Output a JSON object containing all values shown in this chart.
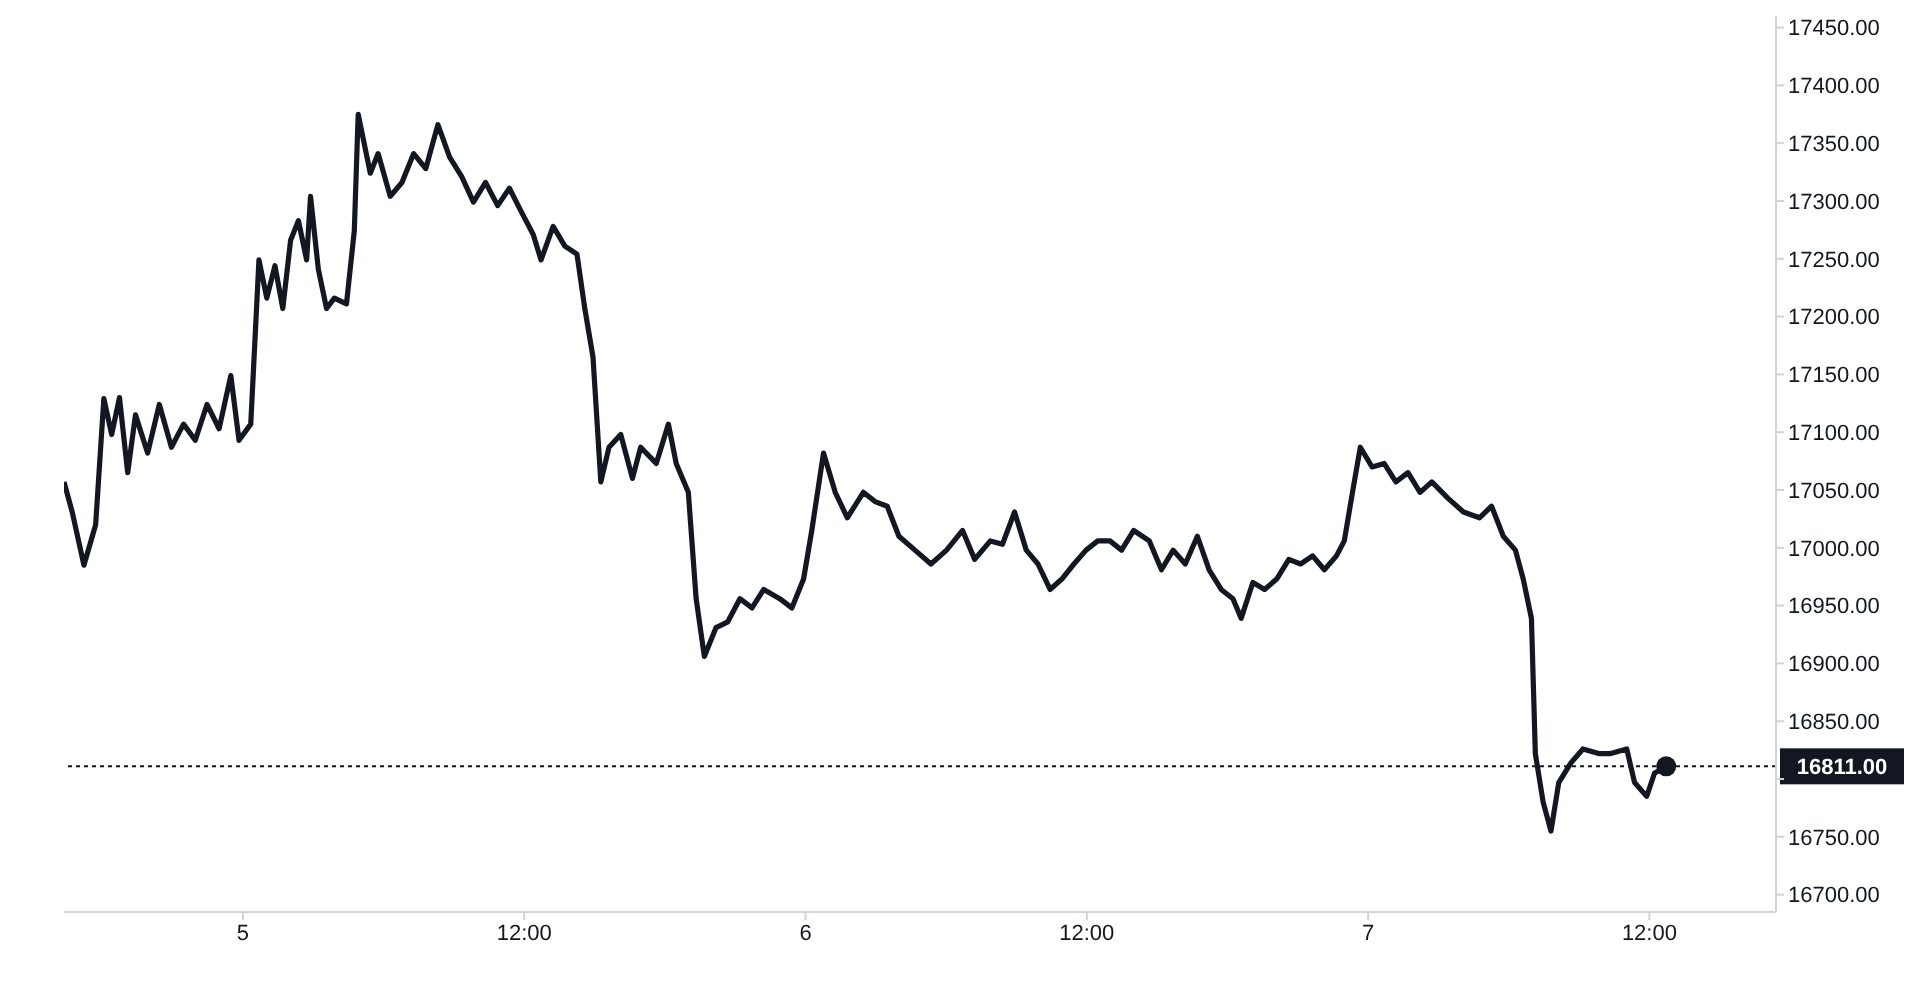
{
  "chart_data": {
    "type": "line",
    "xlim": [
      "--12-04T16:22",
      "--12-07T17:24"
    ],
    "ylim": [
      16685,
      17460
    ],
    "xticks": [
      {
        "value": "--12-05",
        "label": "5"
      },
      {
        "value": "--12-05T12:00",
        "label": "12:00"
      },
      {
        "value": "--12-06",
        "label": "6"
      },
      {
        "value": "--12-06T12:00",
        "label": "12:00"
      },
      {
        "value": "--12-07",
        "label": "7"
      },
      {
        "value": "--12-07T12:00",
        "label": "12:00"
      }
    ],
    "yticks": [
      {
        "value": 16700,
        "label": "16700.00"
      },
      {
        "value": 16750,
        "label": "16750.00"
      },
      {
        "value": 16800,
        "label": null
      },
      {
        "value": 16850,
        "label": "16850.00"
      },
      {
        "value": 16900,
        "label": "16900.00"
      },
      {
        "value": 16950,
        "label": "16950.00"
      },
      {
        "value": 17000,
        "label": "17000.00"
      },
      {
        "value": 17050,
        "label": "17050.00"
      },
      {
        "value": 17100,
        "label": "17100.00"
      },
      {
        "value": 17150,
        "label": "17150.00"
      },
      {
        "value": 17200,
        "label": "17200.00"
      },
      {
        "value": 17250,
        "label": "17250.00"
      },
      {
        "value": 17300,
        "label": "17300.00"
      },
      {
        "value": 17350,
        "label": "17350.00"
      },
      {
        "value": 17400,
        "label": "17400.00"
      },
      {
        "value": 17450,
        "label": "17450.00"
      }
    ],
    "grid": false,
    "marker": "none",
    "line_style": "solid",
    "ref_lines": [
      {
        "axis": "y",
        "value": 16811,
        "label": "16811.00",
        "color": "#131722",
        "line_style": "dotted"
      }
    ],
    "series": [
      {
        "color": "#131722",
        "x": [
          "--12-04T16:22",
          "--12-04T16:43",
          "--12-04T17:13",
          "--12-04T17:43",
          "--12-04T18:04",
          "--12-04T18:24",
          "--12-04T18:44",
          "--12-04T19:05",
          "--12-04T19:25",
          "--12-04T19:56",
          "--12-04T20:26",
          "--12-04T20:57",
          "--12-04T21:28",
          "--12-04T21:58",
          "--12-04T22:28",
          "--12-04T22:59",
          "--12-04T23:29",
          "--12-04T23:50",
          "--12-05T00:20",
          "--12-05T00:41",
          "--12-05T01:01",
          "--12-05T01:22",
          "--12-05T01:42",
          "--12-05T02:02",
          "--12-05T02:22",
          "--12-05T02:43",
          "--12-05T02:53",
          "--12-05T03:13",
          "--12-05T03:34",
          "--12-05T03:54",
          "--12-05T04:25",
          "--12-05T04:45",
          "--12-05T04:55",
          "--12-05T05:26",
          "--12-05T05:46",
          "--12-05T06:17",
          "--12-05T06:47",
          "--12-05T07:17",
          "--12-05T07:48",
          "--12-05T08:19",
          "--12-05T08:49",
          "--12-05T09:20",
          "--12-05T09:50",
          "--12-05T10:21",
          "--12-05T10:52",
          "--12-05T11:22",
          "--12-05T11:52",
          "--12-05T12:23",
          "--12-05T12:43",
          "--12-05T13:14",
          "--12-05T13:44",
          "--12-05T14:15",
          "--12-05T14:35",
          "--12-05T14:56",
          "--12-05T15:16",
          "--12-05T15:37",
          "--12-05T16:07",
          "--12-05T16:37",
          "--12-05T16:58",
          "--12-05T17:38",
          "--12-05T18:09",
          "--12-05T18:29",
          "--12-05T19:00",
          "--12-05T19:20",
          "--12-05T19:41",
          "--12-05T20:11",
          "--12-05T20:41",
          "--12-05T21:12",
          "--12-05T21:43",
          "--12-05T22:13",
          "--12-05T22:54",
          "--12-05T23:25",
          "--12-05T23:55",
          "--12-06T00:16",
          "--12-06T00:46",
          "--12-06T01:16",
          "--12-06T01:47",
          "--12-06T02:28",
          "--12-06T02:58",
          "--12-06T03:29",
          "--12-06T03:59",
          "--12-06T04:40",
          "--12-06T05:21",
          "--12-06T06:01",
          "--12-06T06:42",
          "--12-06T07:13",
          "--12-06T07:53",
          "--12-06T08:24",
          "--12-06T08:55",
          "--12-06T09:25",
          "--12-06T09:55",
          "--12-06T10:26",
          "--12-06T10:56",
          "--12-06T11:27",
          "--12-06T11:58",
          "--12-06T12:28",
          "--12-06T12:59",
          "--12-06T13:29",
          "--12-06T14:00",
          "--12-06T14:40",
          "--12-06T15:11",
          "--12-06T15:41",
          "--12-06T16:12",
          "--12-06T16:43",
          "--12-06T17:13",
          "--12-06T17:44",
          "--12-06T18:14",
          "--12-06T18:35",
          "--12-06T19:05",
          "--12-06T19:35",
          "--12-06T20:06",
          "--12-06T20:37",
          "--12-06T21:07",
          "--12-06T21:38",
          "--12-06T22:08",
          "--12-06T22:39",
          "--12-06T22:59",
          "--12-06T23:20",
          "--12-06T23:40",
          "--12-07T00:10",
          "--12-07T00:41",
          "--12-07T01:11",
          "--12-07T01:42",
          "--12-07T02:13",
          "--12-07T02:43",
          "--12-07T03:24",
          "--12-07T04:04",
          "--12-07T04:45",
          "--12-07T05:16",
          "--12-07T05:46",
          "--12-07T06:17",
          "--12-07T06:37",
          "--12-07T06:58",
          "--12-07T07:08",
          "--12-07T07:28",
          "--12-07T07:48",
          "--12-07T08:08",
          "--12-07T08:39",
          "--12-07T09:10",
          "--12-07T09:50",
          "--12-07T10:21",
          "--12-07T11:02",
          "--12-07T11:22",
          "--12-07T11:53",
          "--12-07T12:13",
          "--12-07T12:43"
        ],
        "values": [
          17057,
          17031,
          16985,
          17020,
          17129,
          17098,
          17130,
          17065,
          17115,
          17082,
          17124,
          17087,
          17107,
          17093,
          17124,
          17103,
          17149,
          17093,
          17107,
          17249,
          17216,
          17244,
          17207,
          17266,
          17283,
          17249,
          17304,
          17241,
          17207,
          17216,
          17211,
          17274,
          17375,
          17324,
          17341,
          17304,
          17316,
          17341,
          17328,
          17366,
          17338,
          17321,
          17299,
          17316,
          17296,
          17311,
          17291,
          17271,
          17249,
          17278,
          17261,
          17254,
          17207,
          17165,
          17057,
          17087,
          17098,
          17060,
          17087,
          17073,
          17107,
          17073,
          17048,
          16956,
          16906,
          16931,
          16936,
          16956,
          16948,
          16964,
          16956,
          16948,
          16973,
          17015,
          17082,
          17048,
          17026,
          17048,
          17040,
          17036,
          17010,
          16998,
          16986,
          16998,
          17015,
          16990,
          17006,
          17003,
          17031,
          16998,
          16986,
          16964,
          16973,
          16986,
          16998,
          17006,
          17006,
          16998,
          17015,
          17006,
          16981,
          16998,
          16986,
          17010,
          16981,
          16964,
          16956,
          16939,
          16970,
          16964,
          16973,
          16990,
          16986,
          16993,
          16981,
          16993,
          17006,
          17048,
          17087,
          17070,
          17073,
          17057,
          17065,
          17048,
          17057,
          17043,
          17031,
          17026,
          17036,
          17010,
          16998,
          16973,
          16939,
          16822,
          16780,
          16755,
          16797,
          16814,
          16826,
          16822,
          16822,
          16826,
          16797,
          16785,
          16805,
          16811
        ]
      },
      {
        "type": "scatter",
        "marker": "circle",
        "color": "#131722",
        "x": [
          "--12-07T12:43"
        ],
        "values": [
          16811
        ]
      }
    ]
  }
}
